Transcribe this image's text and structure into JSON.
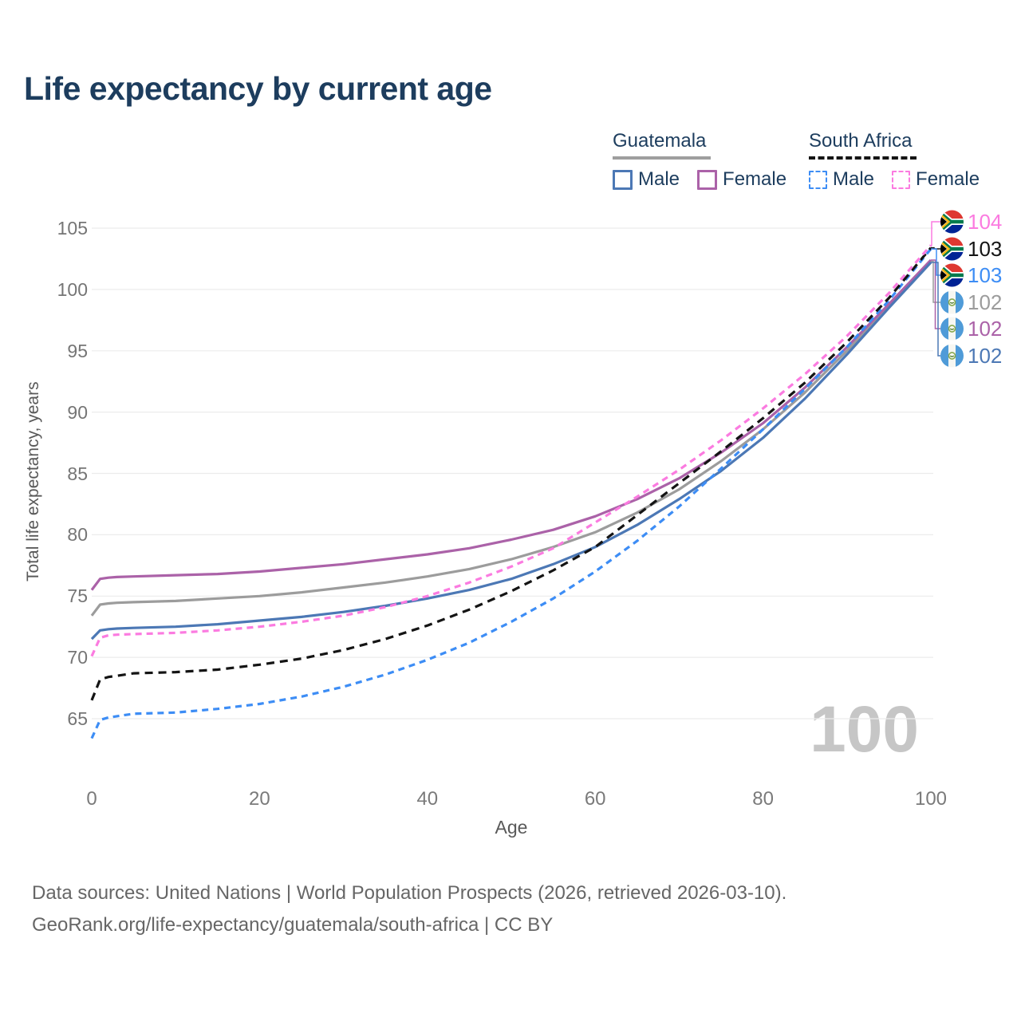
{
  "page": {
    "title": "Life expectancy by current age",
    "current_age_display": "100",
    "footer_line1": "Data sources: United Nations | World Population Prospects (2026, retrieved 2026-03-10).",
    "footer_line2": "GeoRank.org/life-expectancy/guatemala/south-africa | CC BY"
  },
  "legend": {
    "groups": [
      {
        "label": "Guatemala",
        "style": "solid",
        "underline_color": "#9e9e9e",
        "items": [
          {
            "label": "Male",
            "color": "#4c78b5",
            "dashed": false
          },
          {
            "label": "Female",
            "color": "#ab62a8",
            "dashed": false
          }
        ]
      },
      {
        "label": "South Africa",
        "style": "dashed",
        "underline_color": "#141414",
        "items": [
          {
            "label": "Male",
            "color": "#3d8df5",
            "dashed": true
          },
          {
            "label": "Female",
            "color": "#fb7be0",
            "dashed": true
          }
        ]
      }
    ]
  },
  "chart_data": {
    "type": "line",
    "title": "Life expectancy by current age",
    "xlabel": "Age",
    "ylabel": "Total life expectancy, years",
    "xlim": [
      0,
      100
    ],
    "ylim": [
      65,
      105
    ],
    "x_ticks": [
      0,
      20,
      40,
      60,
      80,
      100
    ],
    "y_ticks": [
      65,
      70,
      75,
      80,
      85,
      90,
      95,
      100,
      105
    ],
    "grid": "horizontal",
    "legend_position": "top-right",
    "ages": [
      0,
      1,
      2,
      3,
      5,
      10,
      15,
      20,
      25,
      30,
      35,
      40,
      45,
      50,
      55,
      60,
      65,
      70,
      75,
      80,
      85,
      90,
      95,
      100
    ],
    "series": [
      {
        "name": "Guatemala Total",
        "country": "Guatemala",
        "sex": "all",
        "flag": "guatemala",
        "color": "#9c9c9c",
        "dash": null,
        "end_label": "102",
        "values": [
          73.4,
          74.3,
          74.4,
          74.45,
          74.5,
          74.6,
          74.8,
          75.0,
          75.3,
          75.7,
          76.1,
          76.6,
          77.2,
          78.0,
          79.0,
          80.2,
          81.8,
          83.7,
          86.0,
          88.6,
          91.6,
          95.0,
          98.6,
          102.3
        ]
      },
      {
        "name": "Guatemala Female",
        "country": "Guatemala",
        "sex": "female",
        "flag": "guatemala",
        "color": "#ab62a8",
        "dash": null,
        "end_label": "102",
        "values": [
          75.5,
          76.4,
          76.5,
          76.55,
          76.6,
          76.7,
          76.8,
          77.0,
          77.3,
          77.6,
          78.0,
          78.4,
          78.9,
          79.6,
          80.4,
          81.5,
          82.9,
          84.6,
          86.7,
          89.1,
          92.0,
          95.3,
          98.8,
          102.4
        ]
      },
      {
        "name": "Guatemala Male",
        "country": "Guatemala",
        "sex": "male",
        "flag": "guatemala",
        "color": "#4c78b5",
        "dash": null,
        "end_label": "102",
        "values": [
          71.5,
          72.2,
          72.3,
          72.35,
          72.4,
          72.5,
          72.7,
          73.0,
          73.3,
          73.7,
          74.2,
          74.8,
          75.5,
          76.4,
          77.6,
          79.0,
          80.8,
          82.9,
          85.2,
          87.9,
          91.1,
          94.7,
          98.5,
          102.2
        ]
      },
      {
        "name": "South Africa Male",
        "country": "South Africa",
        "sex": "male",
        "flag": "south-africa",
        "color": "#3d8df5",
        "dash": "8 6",
        "end_label": "103",
        "values": [
          63.4,
          64.9,
          65.1,
          65.2,
          65.4,
          65.5,
          65.8,
          66.2,
          66.8,
          67.6,
          68.6,
          69.8,
          71.2,
          72.9,
          74.8,
          77.0,
          79.5,
          82.3,
          85.4,
          88.6,
          91.9,
          95.3,
          99.1,
          103.3
        ]
      },
      {
        "name": "South Africa Total",
        "country": "South Africa",
        "sex": "all",
        "flag": "south-africa",
        "color": "#141414",
        "dash": "10 7",
        "end_label": "103",
        "values": [
          66.5,
          68.2,
          68.4,
          68.5,
          68.7,
          68.8,
          69.0,
          69.4,
          69.9,
          70.6,
          71.5,
          72.6,
          73.9,
          75.4,
          77.1,
          79.0,
          81.6,
          84.2,
          86.8,
          89.5,
          92.4,
          95.7,
          99.3,
          103.4
        ]
      },
      {
        "name": "South Africa Female",
        "country": "South Africa",
        "sex": "female",
        "flag": "south-africa",
        "color": "#fb7be0",
        "dash": "8 6",
        "end_label": "104",
        "values": [
          70.1,
          71.6,
          71.8,
          71.85,
          71.9,
          72.0,
          72.2,
          72.5,
          72.9,
          73.4,
          74.1,
          75.0,
          76.1,
          77.4,
          78.9,
          81.0,
          83.1,
          85.3,
          87.7,
          90.3,
          93.1,
          96.2,
          99.7,
          103.6
        ]
      }
    ],
    "end_label_order": [
      5,
      4,
      3,
      0,
      1,
      2
    ]
  }
}
